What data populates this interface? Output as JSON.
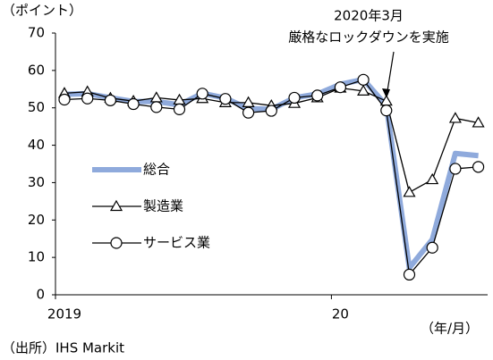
{
  "chart_data": {
    "type": "line",
    "y_label": "（ポイント）",
    "x_label": "（年/月）",
    "source": "（出所）IHS Markit",
    "annotation": [
      "2020年3月",
      "厳格なロックダウンを実施"
    ],
    "categories": [
      "2019",
      null,
      null,
      null,
      null,
      null,
      null,
      null,
      null,
      null,
      null,
      null,
      "20",
      null,
      null,
      null,
      null,
      null,
      null
    ],
    "series": [
      {
        "name": "総合",
        "color": "#8faadc",
        "marker": "none",
        "values": [
          53.6,
          53.8,
          52.7,
          51.7,
          51.7,
          50.8,
          53.9,
          52.6,
          49.8,
          49.6,
          52.7,
          53.7,
          56.3,
          57.6,
          50.6,
          7.2,
          14.8,
          37.8,
          37.2
        ]
      },
      {
        "name": "製造業",
        "color": "#000000",
        "marker": "triangle",
        "values": [
          53.9,
          54.3,
          52.6,
          51.8,
          52.7,
          52.1,
          52.5,
          51.4,
          51.4,
          50.6,
          51.2,
          52.7,
          55.3,
          54.5,
          51.8,
          27.4,
          30.8,
          47.2,
          46.0
        ]
      },
      {
        "name": "サービス業",
        "color": "#000000",
        "marker": "circle",
        "values": [
          52.2,
          52.5,
          52.0,
          51.0,
          50.2,
          49.6,
          53.8,
          52.4,
          48.7,
          49.2,
          52.7,
          53.3,
          55.5,
          57.5,
          49.3,
          5.4,
          12.6,
          33.7,
          34.2
        ]
      }
    ],
    "ylim": [
      0,
      70
    ],
    "yticks": [
      0,
      10,
      20,
      30,
      40,
      50,
      60,
      70
    ]
  }
}
